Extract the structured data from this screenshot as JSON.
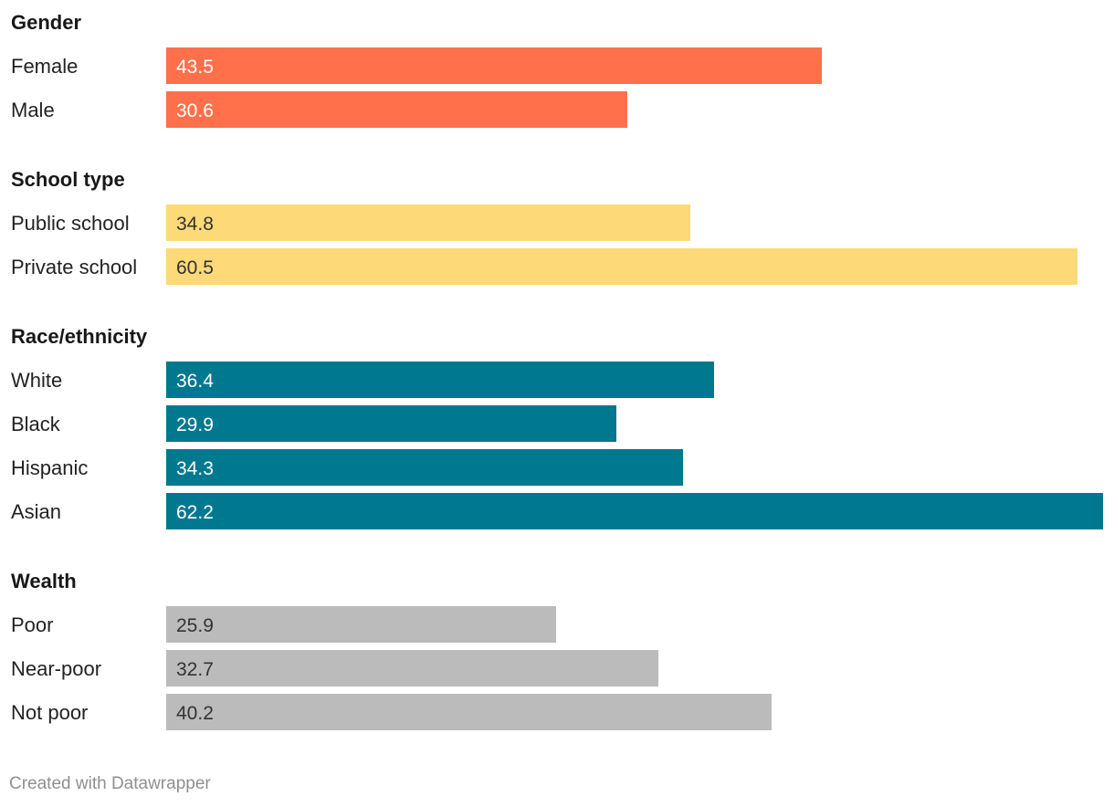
{
  "chart_data": {
    "type": "bar",
    "orientation": "horizontal",
    "value_max": 62.2,
    "groups": [
      {
        "title": "Gender",
        "color": "#ff704b",
        "value_text_color": "#ffffff",
        "categories": [
          "Female",
          "Male"
        ],
        "values": [
          43.5,
          30.6
        ]
      },
      {
        "title": "School type",
        "color": "#fdd977",
        "value_text_color": "#333333",
        "categories": [
          "Public school",
          "Private school"
        ],
        "values": [
          34.8,
          60.5
        ]
      },
      {
        "title": "Race/ethnicity",
        "color": "#00788f",
        "value_text_color": "#ffffff",
        "categories": [
          "White",
          "Black",
          "Hispanic",
          "Asian"
        ],
        "values": [
          36.4,
          29.9,
          34.3,
          62.2
        ]
      },
      {
        "title": "Wealth",
        "color": "#bbbbbb",
        "value_text_color": "#333333",
        "categories": [
          "Poor",
          "Near-poor",
          "Not poor"
        ],
        "values": [
          25.9,
          32.7,
          40.2
        ]
      }
    ]
  },
  "footer": {
    "credit": "Created with Datawrapper"
  }
}
